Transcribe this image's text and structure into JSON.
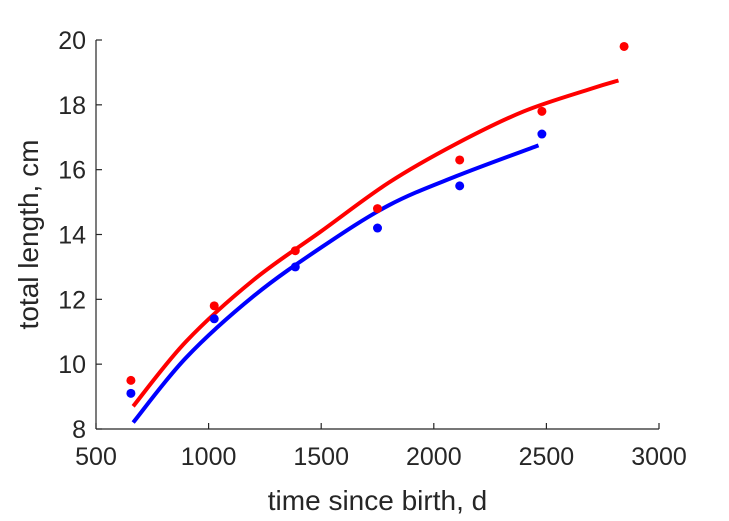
{
  "chart_data": {
    "type": "scatter",
    "title": "",
    "xlabel": "time since birth, d",
    "ylabel": "total length, cm",
    "xlim": [
      500,
      3000
    ],
    "ylim": [
      8,
      20
    ],
    "xticks": [
      500,
      1000,
      1500,
      2000,
      2500,
      3000
    ],
    "yticks": [
      8,
      10,
      12,
      14,
      16,
      18,
      20
    ],
    "grid": false,
    "legend": "none",
    "series": [
      {
        "color": "#ff0000",
        "points": {
          "x": [
            655,
            1025,
            1385,
            1750,
            2115,
            2480,
            2845
          ],
          "y": [
            9.5,
            11.8,
            13.5,
            14.8,
            16.3,
            17.8,
            19.8
          ]
        },
        "fit": {
          "x": [
            665,
            900,
            1200,
            1500,
            1800,
            2100,
            2400,
            2700,
            2820
          ],
          "y": [
            8.7,
            10.7,
            12.6,
            14.1,
            15.6,
            16.8,
            17.8,
            18.5,
            18.75
          ]
        }
      },
      {
        "color": "#0000ff",
        "points": {
          "x": [
            655,
            1025,
            1385,
            1750,
            2115,
            2480
          ],
          "y": [
            9.1,
            11.4,
            13.0,
            14.2,
            15.5,
            17.1
          ]
        },
        "fit": {
          "x": [
            665,
            900,
            1200,
            1500,
            1800,
            2100,
            2465
          ],
          "y": [
            8.2,
            10.2,
            12.1,
            13.6,
            14.9,
            15.8,
            16.75
          ]
        }
      }
    ]
  }
}
